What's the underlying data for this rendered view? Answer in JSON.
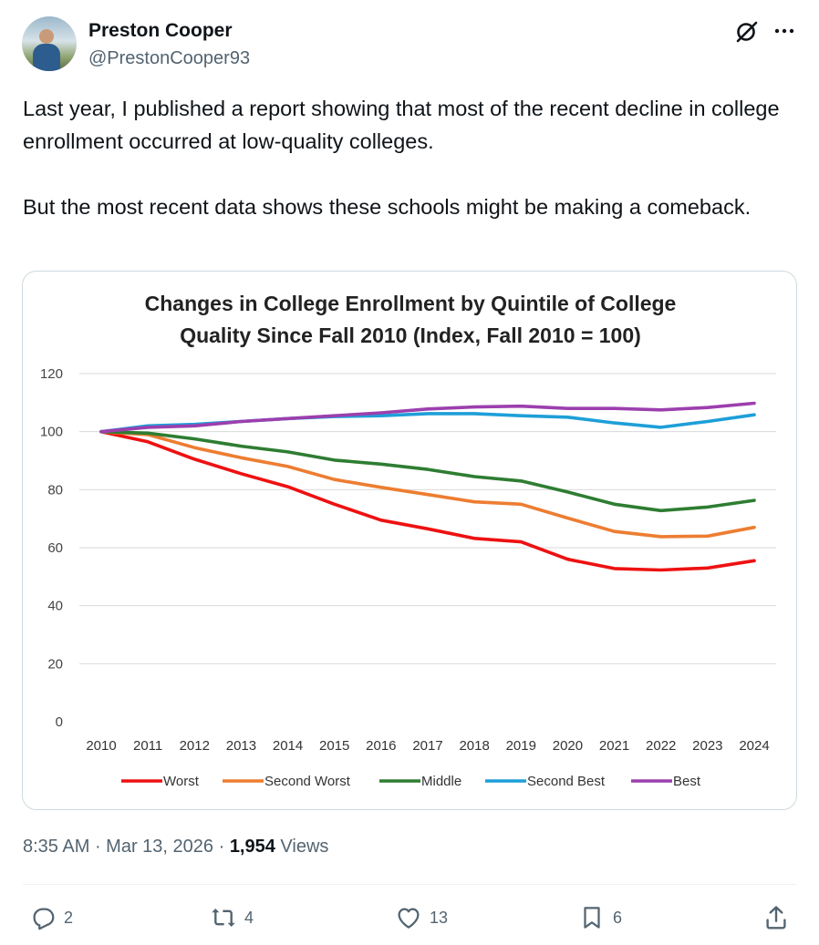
{
  "author": {
    "name": "Preston Cooper",
    "handle": "@PrestonCooper93"
  },
  "header_icons": [
    "grok-icon",
    "more-icon"
  ],
  "tweet": {
    "paragraph1": "Last year, I published a report showing that most of the recent decline in college enrollment occurred at low-quality colleges.",
    "paragraph2": "But the most recent data shows these schools might be making a comeback."
  },
  "meta": {
    "time": "8:35 AM",
    "separator1": " · ",
    "date": "Mar 13, 2026",
    "separator2": " · ",
    "views_count": "1,954",
    "views_label": " Views"
  },
  "actions": {
    "replies": "2",
    "reposts": "4",
    "likes": "13",
    "bookmarks": "6"
  },
  "chart_data": {
    "type": "line",
    "title_line1": "Changes in College Enrollment by Quintile of College",
    "title_line2": "Quality Since Fall 2010 (Index, Fall 2010 = 100)",
    "xlabel": "",
    "ylabel": "",
    "ylim": [
      0,
      120
    ],
    "yticks": [
      0,
      20,
      40,
      60,
      80,
      100,
      120
    ],
    "categories": [
      "2010",
      "2011",
      "2012",
      "2013",
      "2014",
      "2015",
      "2016",
      "2017",
      "2018",
      "2019",
      "2020",
      "2021",
      "2022",
      "2023",
      "2024"
    ],
    "series": [
      {
        "name": "Worst",
        "color": "#ee1111",
        "values": [
          100,
          96.5,
          90.5,
          85.5,
          81,
          75,
          69.5,
          66.5,
          63.2,
          62,
          56,
          52.8,
          52.3,
          53,
          55.5
        ]
      },
      {
        "name": "Second Worst",
        "color": "#ed7d31",
        "values": [
          100,
          99,
          94.5,
          91,
          88,
          83.5,
          80.8,
          78.3,
          75.8,
          75,
          70.2,
          65.6,
          63.8,
          64,
          67
        ]
      },
      {
        "name": "Middle",
        "color": "#2e7d32",
        "values": [
          100,
          99.5,
          97.5,
          95,
          93,
          90.2,
          88.8,
          87,
          84.5,
          83,
          79.2,
          75,
          72.8,
          74,
          76.3
        ]
      },
      {
        "name": "Second Best",
        "color": "#1e9fd8",
        "values": [
          100,
          102,
          102.5,
          103.5,
          104.5,
          105.2,
          105.5,
          106.2,
          106.2,
          105.5,
          105,
          103,
          101.5,
          103.5,
          105.8
        ]
      },
      {
        "name": "Best",
        "color": "#9c3fae",
        "values": [
          100,
          101.5,
          102,
          103.5,
          104.5,
          105.5,
          106.5,
          107.8,
          108.5,
          108.8,
          108,
          108,
          107.5,
          108.3,
          109.8
        ]
      }
    ],
    "legend_position": "bottom"
  }
}
